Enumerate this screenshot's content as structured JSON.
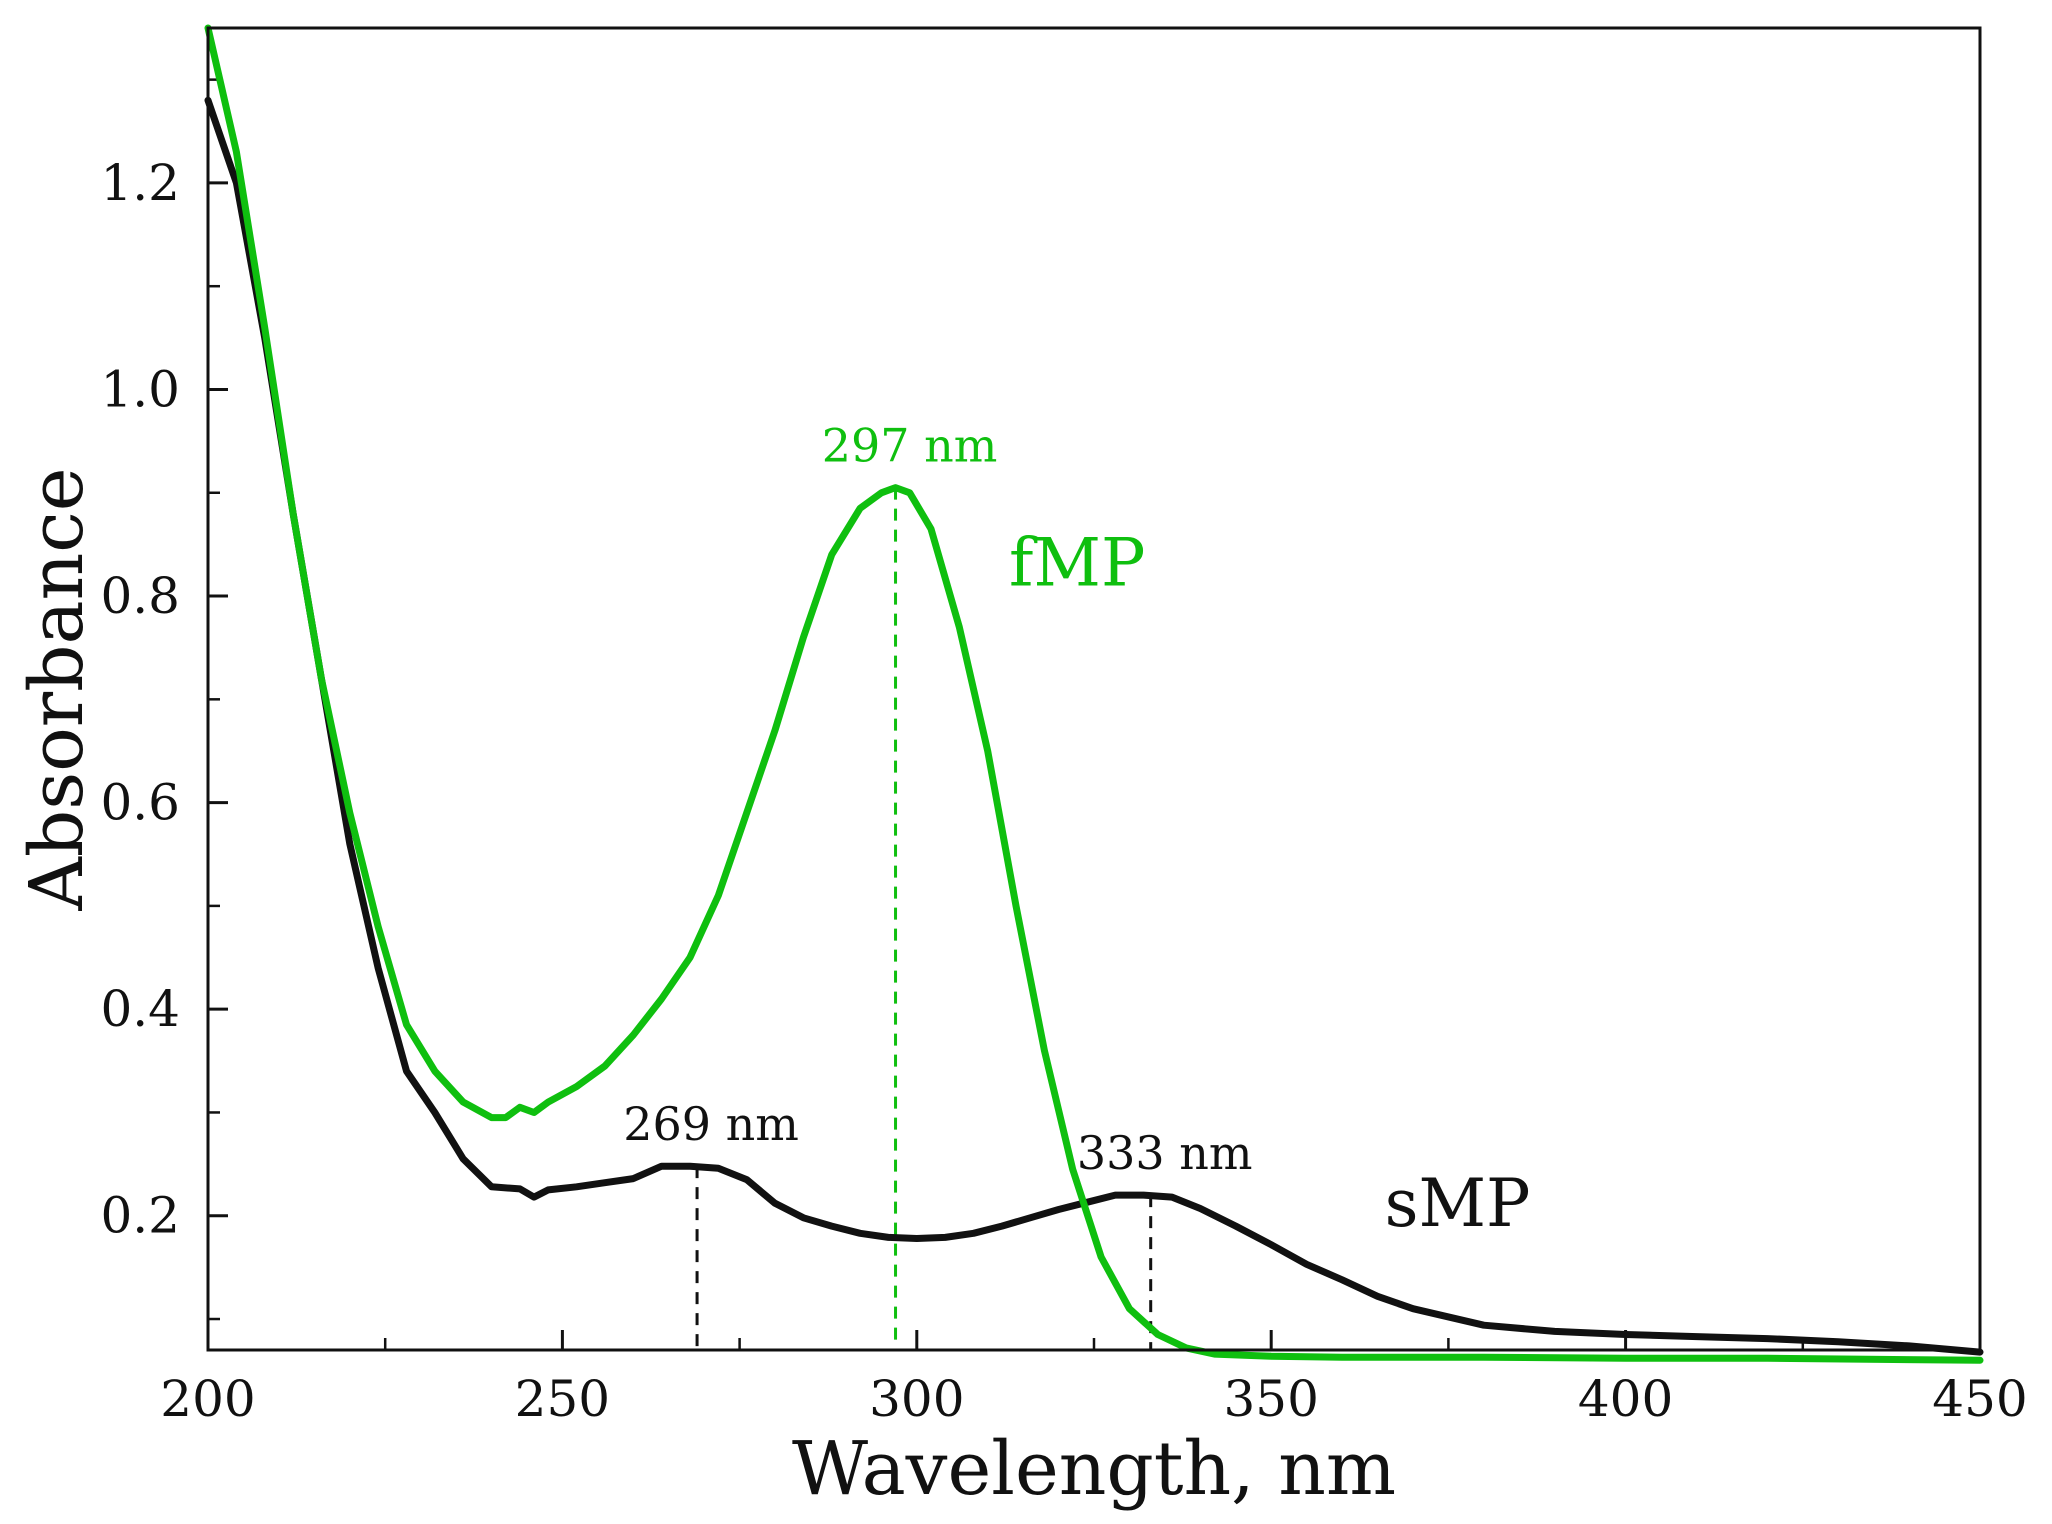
{
  "chart_data": {
    "type": "line",
    "title": "",
    "xlabel": "Wavelength, nm",
    "ylabel": "Absorbance",
    "xlim": [
      200,
      450
    ],
    "ylim": [
      0.07,
      1.35
    ],
    "grid": false,
    "x_ticks": [
      200,
      250,
      300,
      350,
      400,
      450
    ],
    "x_tick_labels": [
      "200",
      "250",
      "300",
      "350",
      "400",
      "450"
    ],
    "x_minor_step": 25,
    "y_ticks": [
      0.2,
      0.4,
      0.6,
      0.8,
      1.0,
      1.2
    ],
    "y_tick_labels": [
      "0.2",
      "0.4",
      "0.6",
      "0.8",
      "1.0",
      "1.2"
    ],
    "y_minor_step": 0.1,
    "series": [
      {
        "name": "sMP",
        "color": "#111111",
        "x": [
          200,
          204,
          208,
          212,
          216,
          220,
          224,
          228,
          232,
          236,
          240,
          244,
          246,
          248,
          252,
          256,
          260,
          264,
          268,
          272,
          276,
          280,
          284,
          288,
          292,
          296,
          300,
          304,
          308,
          312,
          316,
          320,
          324,
          328,
          332,
          336,
          340,
          345,
          350,
          355,
          360,
          365,
          370,
          380,
          390,
          400,
          410,
          420,
          430,
          440,
          450
        ],
        "y": [
          1.28,
          1.2,
          1.05,
          0.88,
          0.72,
          0.56,
          0.44,
          0.34,
          0.3,
          0.255,
          0.228,
          0.226,
          0.218,
          0.225,
          0.228,
          0.232,
          0.236,
          0.248,
          0.248,
          0.246,
          0.235,
          0.212,
          0.198,
          0.19,
          0.183,
          0.179,
          0.178,
          0.179,
          0.183,
          0.19,
          0.198,
          0.206,
          0.213,
          0.22,
          0.22,
          0.218,
          0.207,
          0.19,
          0.172,
          0.153,
          0.138,
          0.122,
          0.11,
          0.094,
          0.088,
          0.085,
          0.083,
          0.081,
          0.078,
          0.074,
          0.068
        ]
      },
      {
        "name": "fMP",
        "color": "#0fbf0f",
        "x": [
          200,
          204,
          208,
          212,
          216,
          220,
          224,
          228,
          232,
          236,
          240,
          242,
          244,
          246,
          248,
          252,
          256,
          260,
          264,
          268,
          272,
          276,
          280,
          284,
          288,
          292,
          295,
          297,
          299,
          302,
          306,
          310,
          314,
          318,
          322,
          326,
          330,
          334,
          338,
          342,
          350,
          360,
          380,
          400,
          420,
          450
        ],
        "y": [
          1.35,
          1.23,
          1.06,
          0.88,
          0.72,
          0.59,
          0.48,
          0.385,
          0.34,
          0.31,
          0.295,
          0.295,
          0.305,
          0.3,
          0.31,
          0.325,
          0.345,
          0.375,
          0.41,
          0.45,
          0.51,
          0.59,
          0.67,
          0.76,
          0.84,
          0.885,
          0.9,
          0.905,
          0.9,
          0.865,
          0.77,
          0.65,
          0.5,
          0.36,
          0.245,
          0.16,
          0.11,
          0.085,
          0.072,
          0.066,
          0.064,
          0.063,
          0.063,
          0.062,
          0.062,
          0.06
        ]
      }
    ],
    "peak_markers": [
      {
        "x": 269,
        "y": 0.248,
        "label": "269 nm",
        "color": "#111111"
      },
      {
        "x": 297,
        "y": 0.905,
        "label": "297 nm",
        "color": "#0fbf0f"
      },
      {
        "x": 333,
        "y": 0.22,
        "label": "333 nm",
        "color": "#111111"
      }
    ],
    "series_labels": [
      {
        "text": "fMP",
        "x": 313,
        "y": 0.81,
        "color": "#0fbf0f"
      },
      {
        "text": "sMP",
        "x": 366,
        "y": 0.19,
        "color": "#111111"
      }
    ]
  }
}
